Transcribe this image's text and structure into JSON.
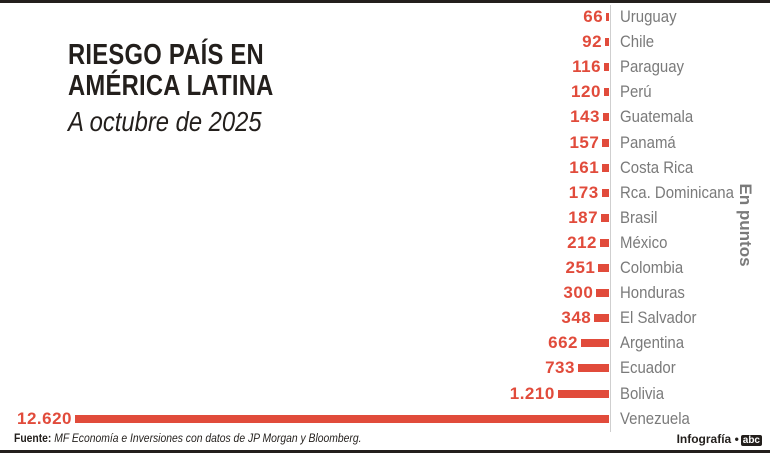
{
  "title": "RIESGO PAÍS EN AMÉRICA LATINA",
  "subtitle": "A octubre de 2025",
  "unit_label": "En puntos",
  "source_label": "Fuente:",
  "source_text": "MF Economía e Inversiones con datos de JP Morgan y Bloomberg.",
  "credit": "Infografía •",
  "logo": "abc",
  "colors": {
    "bar": "#e14b3b",
    "label": "#7a7a7a",
    "dark": "#231f1c"
  },
  "chart_data": {
    "type": "bar",
    "orientation": "horizontal",
    "title": "RIESGO PAÍS EN AMÉRICA LATINA",
    "subtitle": "A octubre de 2025",
    "unit": "En puntos",
    "categories": [
      "Uruguay",
      "Chile",
      "Paraguay",
      "Perú",
      "Guatemala",
      "Panamá",
      "Costa Rica",
      "Rca. Dominicana",
      "Brasil",
      "México",
      "Colombia",
      "Honduras",
      "El Salvador",
      "Argentina",
      "Ecuador",
      "Bolivia",
      "Venezuela"
    ],
    "values": [
      66,
      92,
      116,
      120,
      143,
      157,
      161,
      173,
      187,
      212,
      251,
      300,
      348,
      662,
      733,
      1210,
      12620
    ],
    "value_labels": [
      "66",
      "92",
      "116",
      "120",
      "143",
      "157",
      "161",
      "173",
      "187",
      "212",
      "251",
      "300",
      "348",
      "662",
      "733",
      "1.210",
      "12.620"
    ],
    "grid": false
  }
}
